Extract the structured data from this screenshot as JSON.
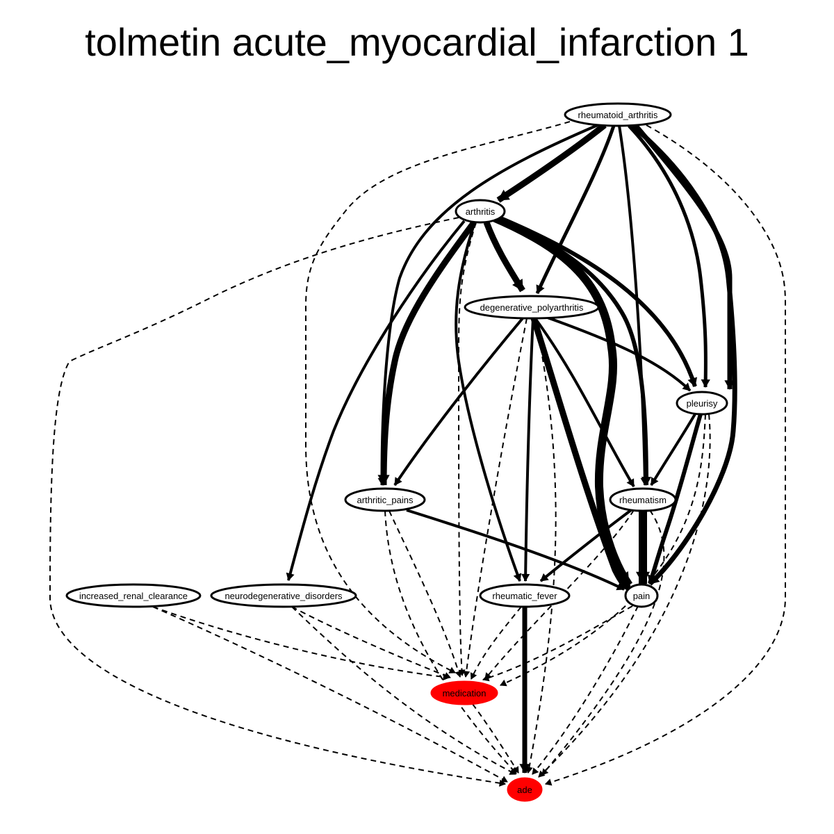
{
  "title": "tolmetin acute_myocardial_infarction 1",
  "nodes": [
    {
      "id": "rheumatoid_arthritis",
      "label": "rheumatoid_arthritis",
      "fill": "#ffffff"
    },
    {
      "id": "arthritis",
      "label": "arthritis",
      "fill": "#ffffff"
    },
    {
      "id": "degenerative_polyarthritis",
      "label": "degenerative_polyarthritis",
      "fill": "#ffffff"
    },
    {
      "id": "pleurisy",
      "label": "pleurisy",
      "fill": "#ffffff"
    },
    {
      "id": "arthritic_pains",
      "label": "arthritic_pains",
      "fill": "#ffffff"
    },
    {
      "id": "rheumatism",
      "label": "rheumatism",
      "fill": "#ffffff"
    },
    {
      "id": "increased_renal_clearance",
      "label": "increased_renal_clearance",
      "fill": "#ffffff"
    },
    {
      "id": "neurodegenerative_disorders",
      "label": "neurodegenerative_disorders",
      "fill": "#ffffff"
    },
    {
      "id": "rheumatic_fever",
      "label": "rheumatic_fever",
      "fill": "#ffffff"
    },
    {
      "id": "pain",
      "label": "pain",
      "fill": "#ffffff"
    },
    {
      "id": "medication",
      "label": "medication",
      "fill": "#ff0000"
    },
    {
      "id": "ade",
      "label": "ade",
      "fill": "#ff0000"
    }
  ],
  "edges": [
    {
      "from": "rheumatoid_arthritis",
      "to": "arthritis",
      "weight": 9,
      "style": "solid"
    },
    {
      "from": "rheumatoid_arthritis",
      "to": "degenerative_polyarthritis",
      "weight": 5,
      "style": "solid"
    },
    {
      "from": "rheumatoid_arthritis",
      "to": "arthritic_pains",
      "weight": 4,
      "style": "solid"
    },
    {
      "from": "rheumatoid_arthritis",
      "to": "rheumatism",
      "weight": 4,
      "style": "solid"
    },
    {
      "from": "rheumatoid_arthritis",
      "to": "pleurisy",
      "weight": 5,
      "style": "solid"
    },
    {
      "from": "rheumatoid_arthritis",
      "to": "pleurisy",
      "weight": 7,
      "style": "solid"
    },
    {
      "from": "rheumatoid_arthritis",
      "to": "pain",
      "weight": 7,
      "style": "solid"
    },
    {
      "from": "rheumatoid_arthritis",
      "to": "medication",
      "weight": 2,
      "style": "dashed"
    },
    {
      "from": "rheumatoid_arthritis",
      "to": "ade",
      "weight": 2,
      "style": "dashed"
    },
    {
      "from": "arthritis",
      "to": "degenerative_polyarthritis",
      "weight": 9,
      "style": "solid"
    },
    {
      "from": "arthritis",
      "to": "arthritic_pains",
      "weight": 9,
      "style": "solid"
    },
    {
      "from": "arthritis",
      "to": "neurodegenerative_disorders",
      "weight": 4,
      "style": "solid"
    },
    {
      "from": "arthritis",
      "to": "rheumatic_fever",
      "weight": 4,
      "style": "solid"
    },
    {
      "from": "arthritis",
      "to": "pain",
      "weight": 12,
      "style": "solid"
    },
    {
      "from": "arthritis",
      "to": "rheumatism",
      "weight": 6,
      "style": "solid"
    },
    {
      "from": "arthritis",
      "to": "pleurisy",
      "weight": 6,
      "style": "solid"
    },
    {
      "from": "arthritis",
      "to": "medication",
      "weight": 2,
      "style": "dashed"
    },
    {
      "from": "arthritis",
      "to": "ade",
      "weight": 2,
      "style": "dashed"
    },
    {
      "from": "degenerative_polyarthritis",
      "to": "arthritic_pains",
      "weight": 4,
      "style": "solid"
    },
    {
      "from": "degenerative_polyarthritis",
      "to": "rheumatic_fever",
      "weight": 4,
      "style": "solid"
    },
    {
      "from": "degenerative_polyarthritis",
      "to": "rheumatism",
      "weight": 4,
      "style": "solid"
    },
    {
      "from": "degenerative_polyarthritis",
      "to": "pleurisy",
      "weight": 4,
      "style": "solid"
    },
    {
      "from": "degenerative_polyarthritis",
      "to": "pain",
      "weight": 9,
      "style": "solid"
    },
    {
      "from": "degenerative_polyarthritis",
      "to": "medication",
      "weight": 2,
      "style": "dashed"
    },
    {
      "from": "degenerative_polyarthritis",
      "to": "ade",
      "weight": 2,
      "style": "dashed"
    },
    {
      "from": "pleurisy",
      "to": "rheumatism",
      "weight": 4,
      "style": "solid"
    },
    {
      "from": "pleurisy",
      "to": "pain",
      "weight": 6,
      "style": "solid"
    },
    {
      "from": "pleurisy",
      "to": "medication",
      "weight": 2,
      "style": "dashed"
    },
    {
      "from": "pleurisy",
      "to": "ade",
      "weight": 2,
      "style": "dashed"
    },
    {
      "from": "arthritic_pains",
      "to": "pain",
      "weight": 4,
      "style": "solid"
    },
    {
      "from": "arthritic_pains",
      "to": "medication",
      "weight": 2,
      "style": "dashed"
    },
    {
      "from": "arthritic_pains",
      "to": "ade",
      "weight": 2,
      "style": "dashed"
    },
    {
      "from": "rheumatism",
      "to": "rheumatic_fever",
      "weight": 4,
      "style": "solid"
    },
    {
      "from": "rheumatism",
      "to": "pain",
      "weight": 12,
      "style": "solid"
    },
    {
      "from": "rheumatism",
      "to": "medication",
      "weight": 2,
      "style": "dashed"
    },
    {
      "from": "rheumatism",
      "to": "ade",
      "weight": 2,
      "style": "dashed"
    },
    {
      "from": "increased_renal_clearance",
      "to": "medication",
      "weight": 2,
      "style": "dashed"
    },
    {
      "from": "increased_renal_clearance",
      "to": "ade",
      "weight": 2,
      "style": "dashed"
    },
    {
      "from": "neurodegenerative_disorders",
      "to": "medication",
      "weight": 2,
      "style": "dashed"
    },
    {
      "from": "neurodegenerative_disorders",
      "to": "ade",
      "weight": 2,
      "style": "dashed"
    },
    {
      "from": "rheumatic_fever",
      "to": "medication",
      "weight": 2,
      "style": "dashed"
    },
    {
      "from": "rheumatic_fever",
      "to": "ade",
      "weight": 7,
      "style": "solid"
    },
    {
      "from": "pain",
      "to": "medication",
      "weight": 2,
      "style": "dashed"
    },
    {
      "from": "pain",
      "to": "ade",
      "weight": 2,
      "style": "dashed"
    },
    {
      "from": "medication",
      "to": "ade",
      "weight": 2,
      "style": "dashed"
    }
  ]
}
